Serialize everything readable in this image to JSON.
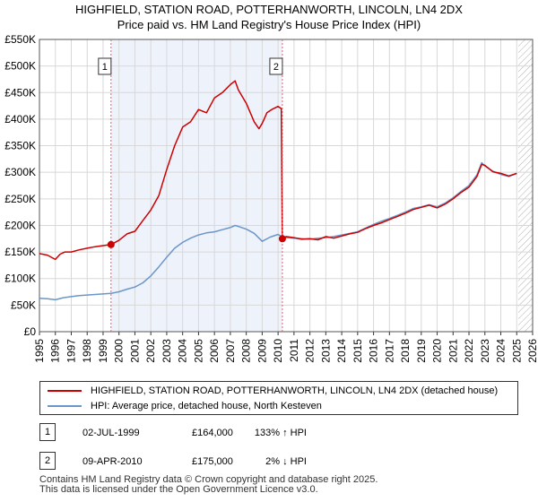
{
  "title_line1": "HIGHFIELD, STATION ROAD, POTTERHANWORTH, LINCOLN, LN4 2DX",
  "title_line2": "Price paid vs. HM Land Registry's House Price Index (HPI)",
  "colors": {
    "property_line": "#cc0000",
    "hpi_line": "#6b96c9",
    "shade": "#eef2fb",
    "marker_dash": "#dd6666",
    "grid": "#d8d8d8",
    "hatch": "#aaaaaa"
  },
  "chart_data": {
    "type": "line",
    "title": "HIGHFIELD, STATION ROAD, POTTERHANWORTH, LINCOLN, LN4 2DX — Price paid vs. HM Land Registry's House Price Index (HPI)",
    "xlabel": "",
    "ylabel": "",
    "xlim": [
      1995,
      2026
    ],
    "ylim": [
      0,
      550000
    ],
    "grid": true,
    "y_ticks": [
      0,
      50000,
      100000,
      150000,
      200000,
      250000,
      300000,
      350000,
      400000,
      450000,
      500000,
      550000
    ],
    "y_tick_labels": [
      "£0",
      "£50K",
      "£100K",
      "£150K",
      "£200K",
      "£250K",
      "£300K",
      "£350K",
      "£400K",
      "£450K",
      "£500K",
      "£550K"
    ],
    "x_ticks": [
      1995,
      1996,
      1997,
      1998,
      1999,
      2000,
      2001,
      2002,
      2003,
      2004,
      2005,
      2006,
      2007,
      2008,
      2009,
      2010,
      2011,
      2012,
      2013,
      2014,
      2015,
      2016,
      2017,
      2018,
      2019,
      2020,
      2021,
      2022,
      2023,
      2024,
      2025,
      2026
    ],
    "x_tick_labels": [
      "1995",
      "1996",
      "1997",
      "1998",
      "1999",
      "2000",
      "2001",
      "2002",
      "2003",
      "2004",
      "2005",
      "2006",
      "2007",
      "2008",
      "2009",
      "2010",
      "2011",
      "2012",
      "2013",
      "2014",
      "2015",
      "2016",
      "2017",
      "2018",
      "2019",
      "2020",
      "2021",
      "2022",
      "2023",
      "2024",
      "2025",
      "2026"
    ],
    "shaded_period": [
      1999.5,
      2010.27
    ],
    "hatched_from": 2025.1,
    "series": [
      {
        "name": "HIGHFIELD, STATION ROAD, POTTERHANWORTH, LINCOLN, LN4 2DX (detached house)",
        "color": "#cc0000",
        "x": [
          1995.0,
          1995.5,
          1996.0,
          1996.3,
          1996.6,
          1997.0,
          1997.5,
          1998.0,
          1998.5,
          1999.0,
          1999.5,
          2000.0,
          2000.5,
          2001.0,
          2001.5,
          2002.0,
          2002.5,
          2003.0,
          2003.5,
          2004.0,
          2004.5,
          2005.0,
          2005.5,
          2006.0,
          2006.5,
          2007.0,
          2007.3,
          2007.5,
          2007.8,
          2008.0,
          2008.5,
          2008.8,
          2009.0,
          2009.3,
          2009.6,
          2010.0,
          2010.2,
          2010.27,
          2010.5,
          2011.0,
          2011.5,
          2012.0,
          2012.5,
          2013.0,
          2013.5,
          2014.0,
          2014.5,
          2015.0,
          2015.5,
          2016.0,
          2016.5,
          2017.0,
          2017.5,
          2018.0,
          2018.5,
          2019.0,
          2019.5,
          2020.0,
          2020.5,
          2021.0,
          2021.5,
          2022.0,
          2022.5,
          2022.8,
          2023.0,
          2023.5,
          2024.0,
          2024.5,
          2025.0
        ],
        "y": [
          147000,
          144000,
          136000,
          146000,
          150000,
          150000,
          154000,
          157000,
          160000,
          162000,
          164000,
          172000,
          184000,
          189000,
          209000,
          229000,
          256000,
          305000,
          350000,
          385000,
          395000,
          418000,
          412000,
          440000,
          450000,
          465000,
          472000,
          455000,
          440000,
          430000,
          395000,
          382000,
          392000,
          412000,
          418000,
          424000,
          420000,
          175000,
          179000,
          177000,
          174000,
          175000,
          173000,
          179000,
          176000,
          180000,
          184000,
          187000,
          194000,
          200000,
          205000,
          211000,
          217000,
          223000,
          230000,
          234000,
          238000,
          233000,
          240000,
          250000,
          262000,
          272000,
          292000,
          315000,
          313000,
          301000,
          298000,
          293000,
          298000
        ]
      },
      {
        "name": "HPI: Average price, detached house, North Kesteven",
        "color": "#6b96c9",
        "x": [
          1995.0,
          1995.5,
          1996.0,
          1996.5,
          1997.0,
          1997.5,
          1998.0,
          1998.5,
          1999.0,
          1999.5,
          2000.0,
          2000.5,
          2001.0,
          2001.5,
          2002.0,
          2002.5,
          2003.0,
          2003.5,
          2004.0,
          2004.5,
          2005.0,
          2005.5,
          2006.0,
          2006.5,
          2007.0,
          2007.3,
          2007.5,
          2008.0,
          2008.5,
          2009.0,
          2009.5,
          2010.0,
          2010.27,
          2010.5,
          2011.0,
          2011.5,
          2012.0,
          2012.5,
          2013.0,
          2013.5,
          2014.0,
          2014.5,
          2015.0,
          2015.5,
          2016.0,
          2016.5,
          2017.0,
          2017.5,
          2018.0,
          2018.5,
          2019.0,
          2019.5,
          2020.0,
          2020.5,
          2021.0,
          2021.5,
          2022.0,
          2022.5,
          2022.8,
          2023.0,
          2023.5,
          2024.0,
          2024.5,
          2025.0
        ],
        "y": [
          63000,
          62000,
          60000,
          64000,
          66000,
          68000,
          69000,
          70000,
          71000,
          72000,
          75000,
          80000,
          84000,
          92000,
          105000,
          122000,
          140000,
          157000,
          168000,
          176000,
          182000,
          186000,
          188000,
          192000,
          196000,
          200000,
          198000,
          193000,
          185000,
          170000,
          178000,
          183000,
          178000,
          177000,
          176000,
          175000,
          174000,
          176000,
          177000,
          179000,
          182000,
          185000,
          188000,
          195000,
          202000,
          208000,
          213000,
          219000,
          225000,
          232000,
          235000,
          239000,
          235000,
          242000,
          252000,
          264000,
          275000,
          295000,
          318000,
          312000,
          302000,
          296000,
          292000,
          298000
        ]
      }
    ],
    "annotations": [
      {
        "label": "1",
        "x": 1999.5,
        "y": 164000
      },
      {
        "label": "2",
        "x": 2010.27,
        "y": 175000
      }
    ]
  },
  "legend": {
    "property": "HIGHFIELD, STATION ROAD, POTTERHANWORTH, LINCOLN, LN4 2DX (detached house)",
    "hpi": "HPI: Average price, detached house, North Kesteven"
  },
  "transactions": [
    {
      "num": "1",
      "date": "02-JUL-1999",
      "price": "£164,000",
      "delta": "133% ↑ HPI"
    },
    {
      "num": "2",
      "date": "09-APR-2010",
      "price": "£175,000",
      "delta": "2% ↓ HPI"
    }
  ],
  "footer": {
    "line1": "Contains HM Land Registry data © Crown copyright and database right 2025.",
    "line2": "This data is licensed under the Open Government Licence v3.0."
  }
}
